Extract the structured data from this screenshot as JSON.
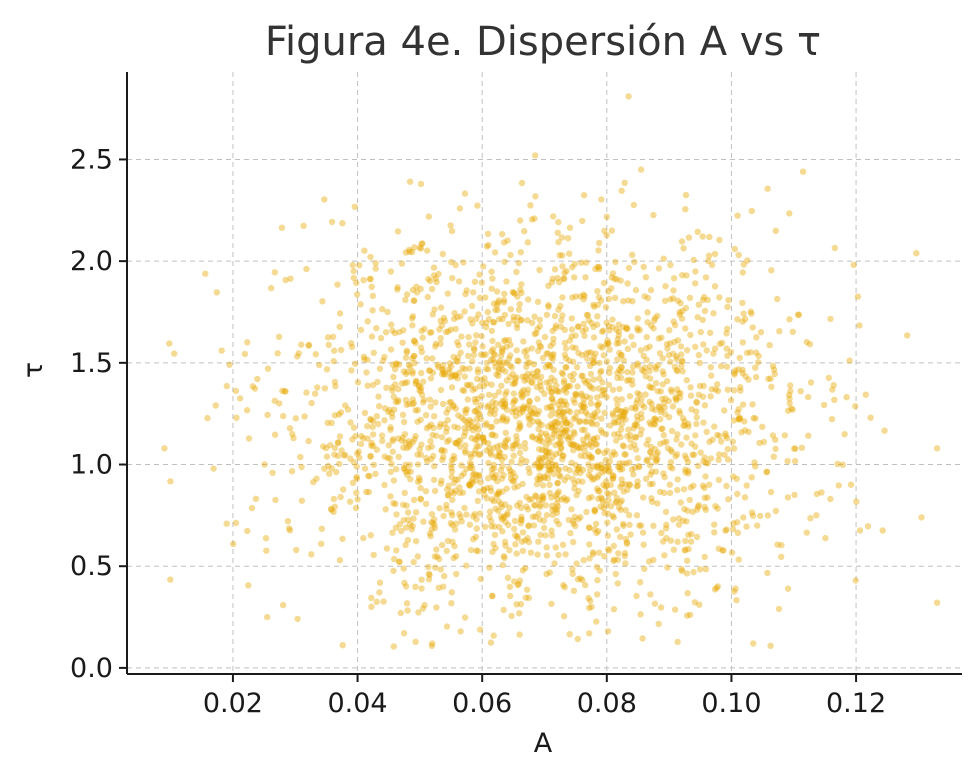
{
  "chart_data": {
    "type": "scatter",
    "title": "Figura 4e. Dispersión A vs τ",
    "xlabel": "A",
    "ylabel": "τ",
    "xlim": [
      0.003,
      0.137
    ],
    "ylim": [
      -0.03,
      2.93
    ],
    "xticks": [
      0.02,
      0.04,
      0.06,
      0.08,
      0.1,
      0.12
    ],
    "xtick_labels": [
      "0.02",
      "0.04",
      "0.06",
      "0.08",
      "0.10",
      "0.12"
    ],
    "yticks": [
      0.0,
      0.5,
      1.0,
      1.5,
      2.0,
      2.5
    ],
    "ytick_labels": [
      "0.0",
      "0.5",
      "1.0",
      "1.5",
      "2.0",
      "2.5"
    ],
    "grid": true,
    "color": "#E8A600",
    "n_points": 2500,
    "approx_distribution": {
      "x_mean": 0.07,
      "x_sd": 0.02,
      "y_mean": 1.2,
      "y_sd": 0.45
    },
    "notable_points": [
      {
        "x": 0.0835,
        "y": 2.81
      },
      {
        "x": 0.0685,
        "y": 2.52
      },
      {
        "x": 0.0855,
        "y": 2.45
      },
      {
        "x": 0.1115,
        "y": 2.44
      },
      {
        "x": 0.1305,
        "y": 0.74
      },
      {
        "x": 0.133,
        "y": 1.08
      },
      {
        "x": 0.009,
        "y": 1.08
      },
      {
        "x": 0.0255,
        "y": 0.25
      },
      {
        "x": 0.1035,
        "y": 0.12
      },
      {
        "x": 0.052,
        "y": 0.12
      }
    ]
  }
}
